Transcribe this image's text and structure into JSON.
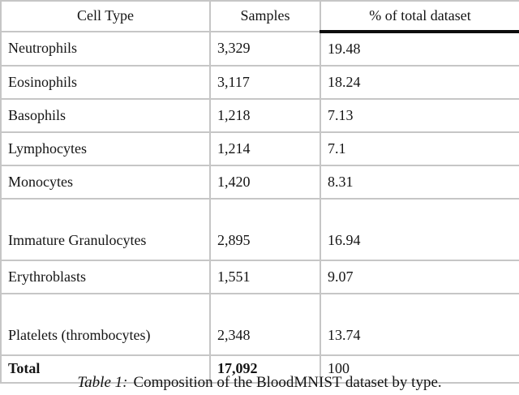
{
  "table": {
    "border_color": "#c6c6c6",
    "header_rule_color": "#0d0d0d",
    "columns": [
      {
        "label": "Cell Type"
      },
      {
        "label": "Samples"
      },
      {
        "label": "% of total dataset"
      }
    ],
    "rows": [
      {
        "cell_type": "Neutrophils",
        "samples": "3,329",
        "percent": "19.48"
      },
      {
        "cell_type": "Eosinophils",
        "samples": "3,117",
        "percent": "18.24"
      },
      {
        "cell_type": "Basophils",
        "samples": "1,218",
        "percent": "7.13"
      },
      {
        "cell_type": "Lymphocytes",
        "samples": "1,214",
        "percent": "7.1"
      },
      {
        "cell_type": "Monocytes",
        "samples": "1,420",
        "percent": "8.31"
      },
      {
        "cell_type": "Immature Granulocytes",
        "samples": "2,895",
        "percent": "16.94"
      },
      {
        "cell_type": "Erythroblasts",
        "samples": "1,551",
        "percent": "9.07"
      },
      {
        "cell_type": "Platelets (thrombocytes)",
        "samples": "2,348",
        "percent": "13.74"
      },
      {
        "cell_type": "Total",
        "samples": "17,092",
        "percent": "100"
      }
    ]
  },
  "caption": {
    "label": "Table 1:",
    "text": "Composition of the BloodMNIST dataset by type."
  },
  "chart_data": {
    "type": "table",
    "title": "Composition of the BloodMNIST dataset by type",
    "columns": [
      "Cell Type",
      "Samples",
      "% of total dataset"
    ],
    "categories": [
      "Neutrophils",
      "Eosinophils",
      "Basophils",
      "Lymphocytes",
      "Monocytes",
      "Immature Granulocytes",
      "Erythroblasts",
      "Platelets (thrombocytes)",
      "Total"
    ],
    "series": [
      {
        "name": "Samples",
        "values": [
          3329,
          3117,
          1218,
          1214,
          1420,
          2895,
          1551,
          2348,
          17092
        ]
      },
      {
        "name": "% of total dataset",
        "values": [
          19.48,
          18.24,
          7.13,
          7.1,
          8.31,
          16.94,
          9.07,
          13.74,
          100
        ]
      }
    ]
  }
}
